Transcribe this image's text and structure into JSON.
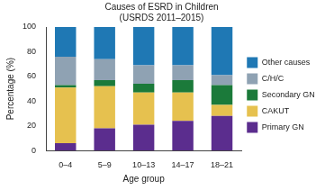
{
  "chart_data": {
    "type": "bar",
    "title": [
      "Causes of ESRD in Children",
      "(USRDS 2011–2015)"
    ],
    "x_label": "Age group",
    "y_label": "Percentage (%)",
    "categories": [
      "0–4",
      "5–9",
      "10–13",
      "14–17",
      "18–21"
    ],
    "series": [
      {
        "name": "Primary GN",
        "color": "#5b2d8e",
        "values": [
          6,
          18,
          21,
          24,
          28
        ]
      },
      {
        "name": "CAKUT",
        "color": "#e6c14f",
        "values": [
          45,
          34,
          26,
          23,
          9
        ]
      },
      {
        "name": "Secondary GN",
        "color": "#1b7a3a",
        "values": [
          2,
          5,
          7,
          10,
          16
        ]
      },
      {
        "name": "C/H/C",
        "color": "#8fa2b3",
        "values": [
          23,
          17,
          15,
          12,
          8
        ]
      },
      {
        "name": "Other causes",
        "color": "#1f78b4",
        "values": [
          24,
          26,
          31,
          31,
          39
        ]
      }
    ],
    "ylim": [
      0,
      100
    ],
    "yticks": [
      0,
      20,
      40,
      60,
      80,
      100
    ],
    "stacked": true,
    "grid": false,
    "legend": "right"
  }
}
